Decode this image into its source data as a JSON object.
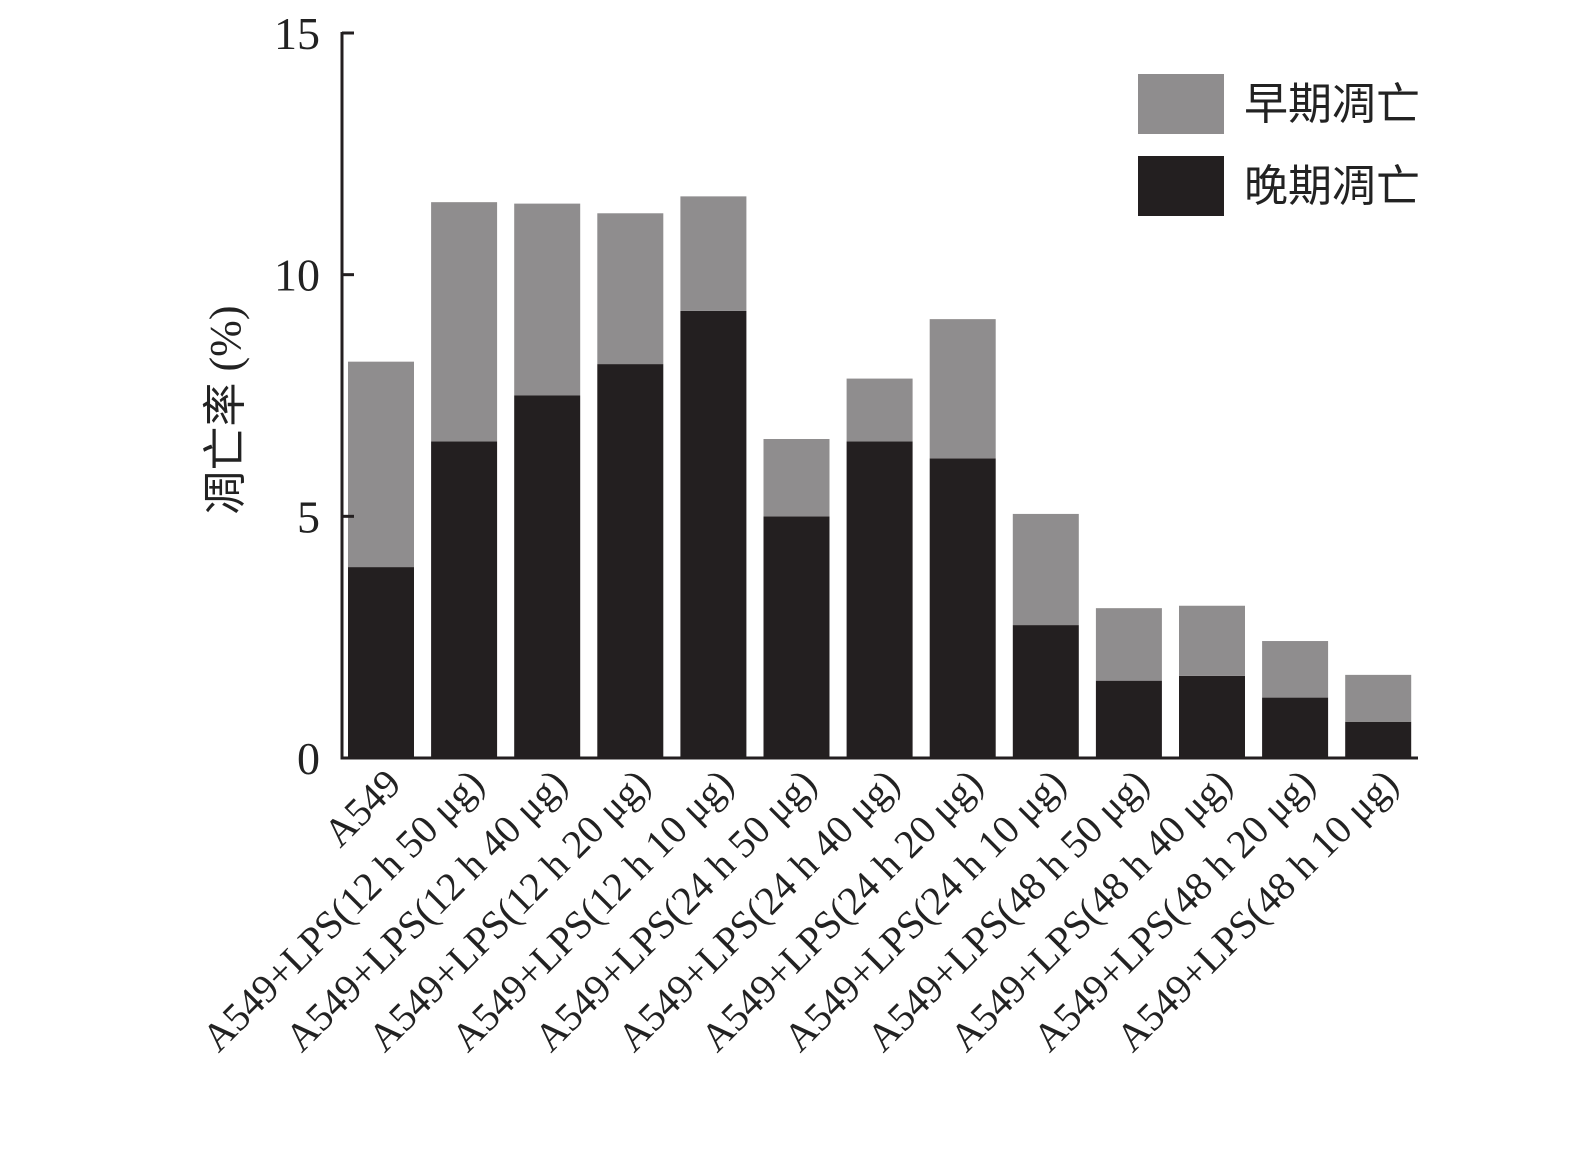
{
  "chart_data": {
    "type": "bar",
    "stacked": true,
    "title": "",
    "xlabel": "",
    "ylabel": "凋亡率 (%)",
    "ylim": [
      0,
      15
    ],
    "yticks": [
      0,
      5,
      10,
      15
    ],
    "grid": false,
    "legend_position": "top-right",
    "categories": [
      "A549",
      "A549+LPS(12 h 50 μg)",
      "A549+LPS(12 h 40 μg)",
      "A549+LPS(12 h 20 μg)",
      "A549+LPS(12 h 10 μg)",
      "A549+LPS(24 h 50 μg)",
      "A549+LPS(24 h 40 μg)",
      "A549+LPS(24 h 20 μg)",
      "A549+LPS(24 h 10 μg)",
      "A549+LPS(48 h 50 μg)",
      "A549+LPS(48 h 40 μg)",
      "A549+LPS(48 h 20 μg)",
      "A549+LPS(48 h 10 μg)"
    ],
    "series": [
      {
        "name": "晚期凋亡",
        "color": "#231f20",
        "values": [
          3.95,
          6.55,
          7.5,
          8.15,
          9.25,
          5.0,
          6.55,
          6.2,
          2.75,
          1.6,
          1.7,
          1.25,
          0.75
        ]
      },
      {
        "name": "早期凋亡",
        "color": "#8f8d8e",
        "values": [
          4.25,
          4.95,
          3.97,
          3.12,
          2.37,
          1.6,
          1.3,
          2.88,
          2.3,
          1.5,
          1.45,
          1.17,
          0.97
        ]
      }
    ],
    "legend_order": [
      1,
      0
    ]
  }
}
